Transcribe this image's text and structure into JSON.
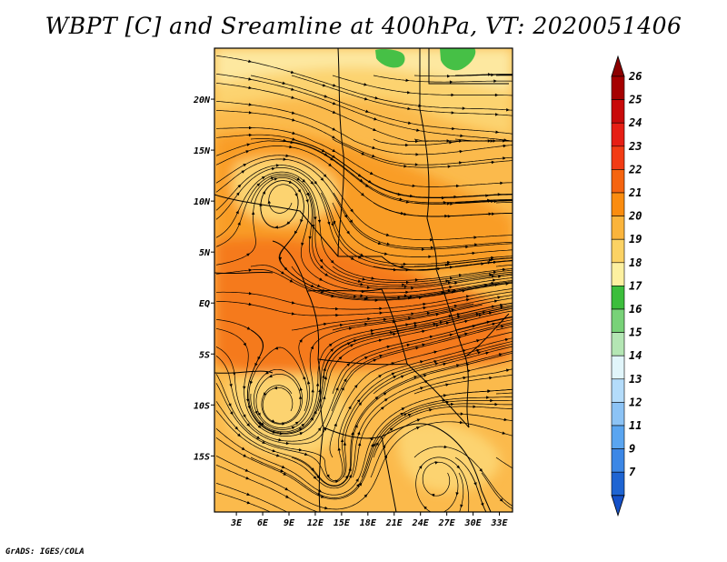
{
  "title": "WBPT [C] and Sreamline at 400hPa, VT: 2020051406",
  "credit": "GrADS: IGES/COLA",
  "map": {
    "lon_range": [
      0.5,
      34.5
    ],
    "lat_range": [
      -20.5,
      25.0
    ],
    "x_ticks": [
      {
        "value": 3,
        "label": "3E"
      },
      {
        "value": 6,
        "label": "6E"
      },
      {
        "value": 9,
        "label": "9E"
      },
      {
        "value": 12,
        "label": "12E"
      },
      {
        "value": 15,
        "label": "15E"
      },
      {
        "value": 18,
        "label": "18E"
      },
      {
        "value": 21,
        "label": "21E"
      },
      {
        "value": 24,
        "label": "24E"
      },
      {
        "value": 27,
        "label": "27E"
      },
      {
        "value": 30,
        "label": "30E"
      },
      {
        "value": 33,
        "label": "33E"
      }
    ],
    "y_ticks": [
      {
        "value": 20,
        "label": "20N"
      },
      {
        "value": 15,
        "label": "15N"
      },
      {
        "value": 10,
        "label": "10N"
      },
      {
        "value": 5,
        "label": "5N"
      },
      {
        "value": 0,
        "label": "EQ"
      },
      {
        "value": -5,
        "label": "5S"
      },
      {
        "value": -10,
        "label": "10S"
      },
      {
        "value": -15,
        "label": "15S"
      }
    ]
  },
  "colorbar": {
    "levels": [
      {
        "label": "26",
        "color": "#a50000"
      },
      {
        "label": "25",
        "color": "#c80a0a"
      },
      {
        "label": "24",
        "color": "#e61e14"
      },
      {
        "label": "23",
        "color": "#f23c14"
      },
      {
        "label": "22",
        "color": "#f5640f"
      },
      {
        "label": "21",
        "color": "#fa8c0f"
      },
      {
        "label": "20",
        "color": "#fab43c"
      },
      {
        "label": "19",
        "color": "#fbd264"
      },
      {
        "label": "18",
        "color": "#fdf0a0"
      },
      {
        "label": "17",
        "color": "#3cbe3c"
      },
      {
        "label": "16",
        "color": "#78d278"
      },
      {
        "label": "15",
        "color": "#b4e6b4"
      },
      {
        "label": "14",
        "color": "#e1f5fa"
      },
      {
        "label": "13",
        "color": "#b4dcfa"
      },
      {
        "label": "12",
        "color": "#8cc3f5"
      },
      {
        "label": "11",
        "color": "#5aa5f0"
      },
      {
        "label": "9",
        "color": "#3c87e6"
      },
      {
        "label": "7",
        "color": "#1e64d2"
      }
    ],
    "top_color": "#8c0000",
    "bottom_color": "#1450c8"
  },
  "field_colors": {
    "c18": "#fde8a0",
    "c19": "#fcd370",
    "c20": "#fbba4c",
    "c21": "#f99d28",
    "c22": "#f57a1a",
    "c17": "#46c046"
  }
}
